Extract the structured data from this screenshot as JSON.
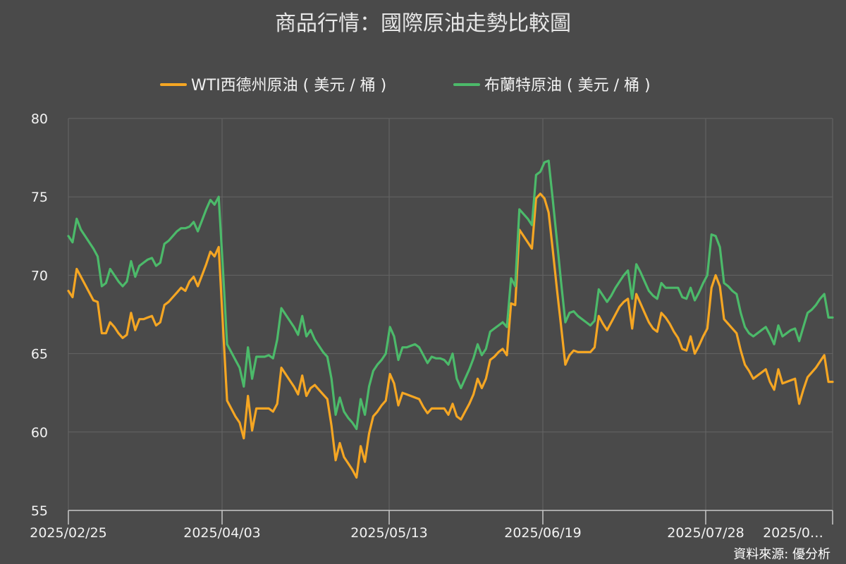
{
  "chart_data": {
    "type": "line",
    "title": "商品行情：國際原油走勢比較圖",
    "source": "資料來源: 優分析",
    "ylim": [
      55,
      80
    ],
    "yticks": [
      55,
      60,
      65,
      70,
      75,
      80
    ],
    "grid": true,
    "legend_position": "top",
    "x_tick_labels": [
      "2025/02/25",
      "2025/04/03",
      "2025/05/13",
      "2025/06/19",
      "2025/07/28",
      "2025/0…"
    ],
    "series": [
      {
        "name": "WTI西德州原油 ( 美元 / 桶 )",
        "color": "#f5a623",
        "values": [
          69.0,
          68.6,
          70.4,
          69.9,
          69.4,
          68.9,
          68.4,
          68.3,
          66.3,
          66.3,
          67.0,
          66.7,
          66.3,
          66.0,
          66.2,
          67.6,
          66.5,
          67.2,
          67.2,
          67.3,
          67.4,
          66.8,
          67.0,
          68.1,
          68.3,
          68.6,
          68.9,
          69.2,
          69.0,
          69.6,
          69.9,
          69.3,
          70.0,
          70.7,
          71.5,
          71.2,
          71.8,
          66.8,
          62.0,
          61.5,
          61.0,
          60.6,
          59.6,
          62.3,
          60.1,
          61.5,
          61.5,
          61.5,
          61.5,
          61.3,
          61.8,
          64.1,
          63.7,
          63.3,
          62.9,
          62.4,
          63.6,
          62.3,
          62.8,
          63.0,
          62.7,
          62.4,
          62.1,
          60.4,
          58.2,
          59.3,
          58.4,
          58.0,
          57.6,
          57.1,
          59.1,
          58.1,
          59.9,
          61.0,
          61.3,
          61.7,
          62.0,
          63.7,
          63.1,
          61.7,
          62.5,
          62.4,
          62.3,
          62.2,
          62.1,
          61.6,
          61.2,
          61.5,
          61.5,
          61.5,
          61.5,
          61.1,
          61.8,
          61.0,
          60.8,
          61.3,
          61.8,
          62.4,
          63.4,
          62.8,
          63.4,
          64.6,
          64.8,
          65.1,
          65.3,
          64.9,
          68.2,
          68.1,
          72.9,
          72.5,
          72.1,
          71.7,
          74.9,
          75.2,
          74.9,
          74.0,
          71.6,
          69.1,
          66.7,
          64.3,
          64.9,
          65.2,
          65.1,
          65.1,
          65.1,
          65.1,
          65.4,
          67.4,
          66.9,
          66.5,
          67.0,
          67.5,
          68.0,
          68.3,
          68.5,
          66.6,
          68.8,
          68.2,
          67.6,
          67.0,
          66.6,
          66.4,
          67.6,
          67.3,
          66.9,
          66.4,
          66.0,
          65.3,
          65.2,
          66.1,
          65.0,
          65.5,
          66.1,
          66.6,
          69.2,
          70.0,
          69.3,
          67.2,
          66.9,
          66.6,
          66.3,
          65.2,
          64.3,
          63.9,
          63.4,
          63.6,
          63.8,
          64.0,
          63.2,
          62.7,
          64.0,
          63.1,
          63.2,
          63.3,
          63.4,
          61.8,
          62.7,
          63.5,
          63.8,
          64.1,
          64.5,
          64.9,
          63.2,
          63.2
        ]
      },
      {
        "name": "布蘭特原油 ( 美元 / 桶 )",
        "color": "#4cba6a",
        "values": [
          72.5,
          72.1,
          73.6,
          72.9,
          72.5,
          72.1,
          71.7,
          71.2,
          69.3,
          69.5,
          70.4,
          70.0,
          69.6,
          69.3,
          69.6,
          70.9,
          69.9,
          70.6,
          70.8,
          71.0,
          71.1,
          70.6,
          70.8,
          72.0,
          72.2,
          72.5,
          72.8,
          73.0,
          73.0,
          73.1,
          73.4,
          72.8,
          73.5,
          74.2,
          74.8,
          74.5,
          75.0,
          70.4,
          65.6,
          65.1,
          64.6,
          64.1,
          62.9,
          65.4,
          63.4,
          64.8,
          64.8,
          64.8,
          64.9,
          64.7,
          65.9,
          67.9,
          67.5,
          67.1,
          66.7,
          66.2,
          67.4,
          66.1,
          66.5,
          65.9,
          65.5,
          65.1,
          64.8,
          63.4,
          61.1,
          62.2,
          61.3,
          60.9,
          60.6,
          60.2,
          62.1,
          61.1,
          62.9,
          63.9,
          64.3,
          64.6,
          65.0,
          66.7,
          66.1,
          64.6,
          65.4,
          65.4,
          65.5,
          65.6,
          65.4,
          64.9,
          64.4,
          64.8,
          64.7,
          64.7,
          64.6,
          64.3,
          65.0,
          63.4,
          62.8,
          63.4,
          64.0,
          64.7,
          65.6,
          64.9,
          65.3,
          66.4,
          66.6,
          66.8,
          67.0,
          66.7,
          69.8,
          69.3,
          74.2,
          73.9,
          73.6,
          73.2,
          76.4,
          76.6,
          77.2,
          77.3,
          74.8,
          72.2,
          69.5,
          67.0,
          67.6,
          67.7,
          67.4,
          67.2,
          67.0,
          66.8,
          67.1,
          69.1,
          68.7,
          68.3,
          68.7,
          69.2,
          69.6,
          70.0,
          70.3,
          68.5,
          70.7,
          70.2,
          69.6,
          69.0,
          68.7,
          68.5,
          69.5,
          69.2,
          69.2,
          69.2,
          69.2,
          68.6,
          68.5,
          69.2,
          68.4,
          68.9,
          69.5,
          70.0,
          72.6,
          72.5,
          71.8,
          69.5,
          69.3,
          69.0,
          68.8,
          67.6,
          66.7,
          66.3,
          66.1,
          66.3,
          66.5,
          66.7,
          66.2,
          65.6,
          66.8,
          66.1,
          66.3,
          66.5,
          66.6,
          65.8,
          66.7,
          67.6,
          67.8,
          68.1,
          68.5,
          68.8,
          67.3,
          67.3
        ]
      }
    ]
  }
}
